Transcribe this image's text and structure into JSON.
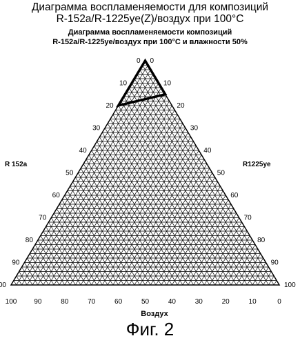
{
  "header": {
    "line1": "Диаграмма воспламеняемости для композиций",
    "line2": "R-152a/R-1225ye(Z)/воздух при 100°C"
  },
  "chart_data": {
    "type": "ternary",
    "title_line1": "Диаграмма воспламеняемости композиций",
    "title_line2": "R-152a/R-1225ye/воздух при 100°C и влажности 50%",
    "components": {
      "left": "R 152a",
      "right": "R1225ye",
      "bottom": "Воздух"
    },
    "ticks": [
      0,
      10,
      20,
      30,
      40,
      50,
      60,
      70,
      80,
      90,
      100
    ],
    "grid": true,
    "grid_step": 2,
    "flammable_region": [
      {
        "R152a": 20,
        "R1225ye": 0,
        "air": 80
      },
      {
        "R152a": 0,
        "R1225ye": 0,
        "air": 100
      },
      {
        "R152a": 0,
        "R1225ye": 15,
        "air": 85
      }
    ]
  },
  "caption": "Фиг. 2"
}
